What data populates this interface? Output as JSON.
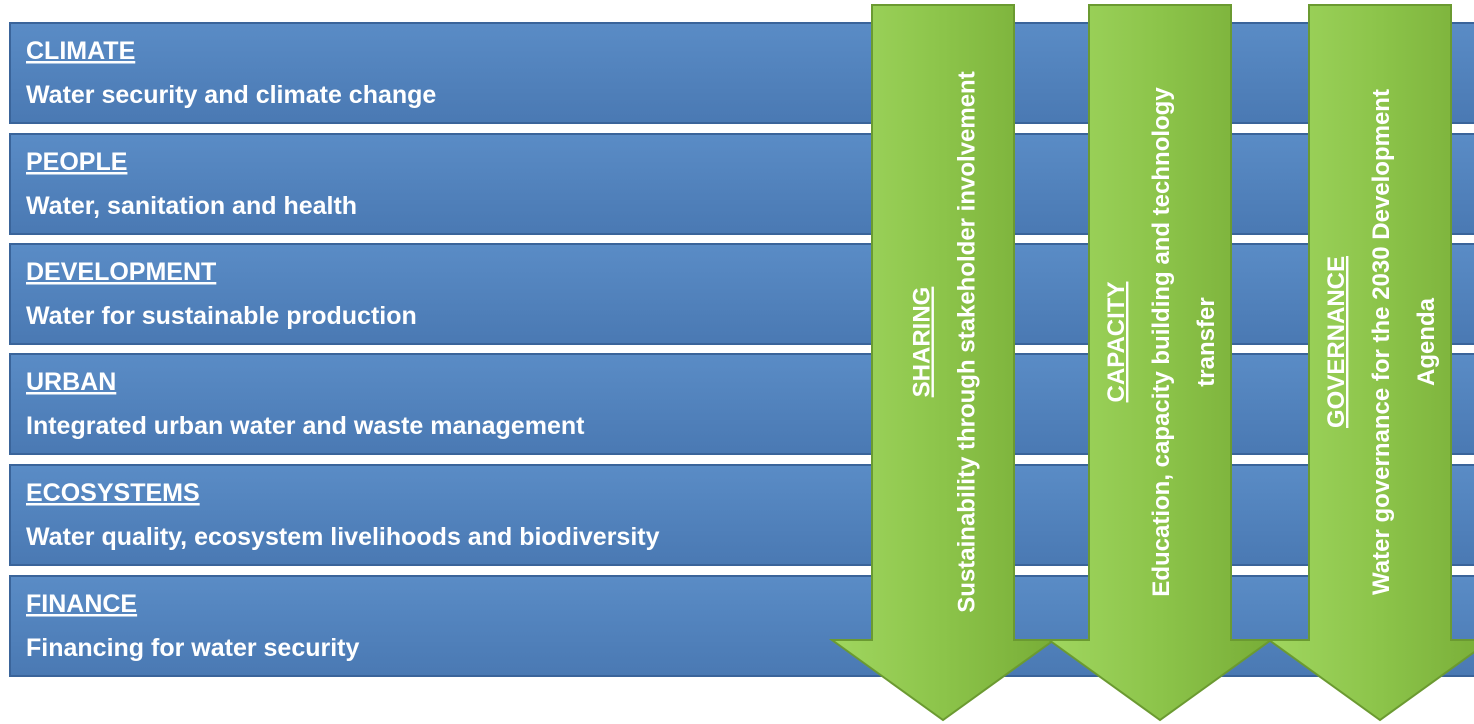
{
  "rows": [
    {
      "title": "CLIMATE",
      "subtitle": "Water security and climate change"
    },
    {
      "title": "PEOPLE",
      "subtitle": "Water, sanitation and health"
    },
    {
      "title": "DEVELOPMENT",
      "subtitle": "Water for sustainable production"
    },
    {
      "title": "URBAN",
      "subtitle": "Integrated urban water and waste management"
    },
    {
      "title": "ECOSYSTEMS",
      "subtitle": "Water quality, ecosystem livelihoods and biodiversity"
    },
    {
      "title": "FINANCE",
      "subtitle": "Financing for water security"
    }
  ],
  "columns": [
    {
      "title": "SHARING",
      "lines": [
        "Sustainability through stakeholder involvement"
      ]
    },
    {
      "title": "CAPACITY",
      "lines": [
        "Education, capacity building and technology",
        "transfer"
      ]
    },
    {
      "title": "GOVERNANCE",
      "lines": [
        "Water governance for the 2030 Development",
        "Agenda"
      ]
    }
  ]
}
